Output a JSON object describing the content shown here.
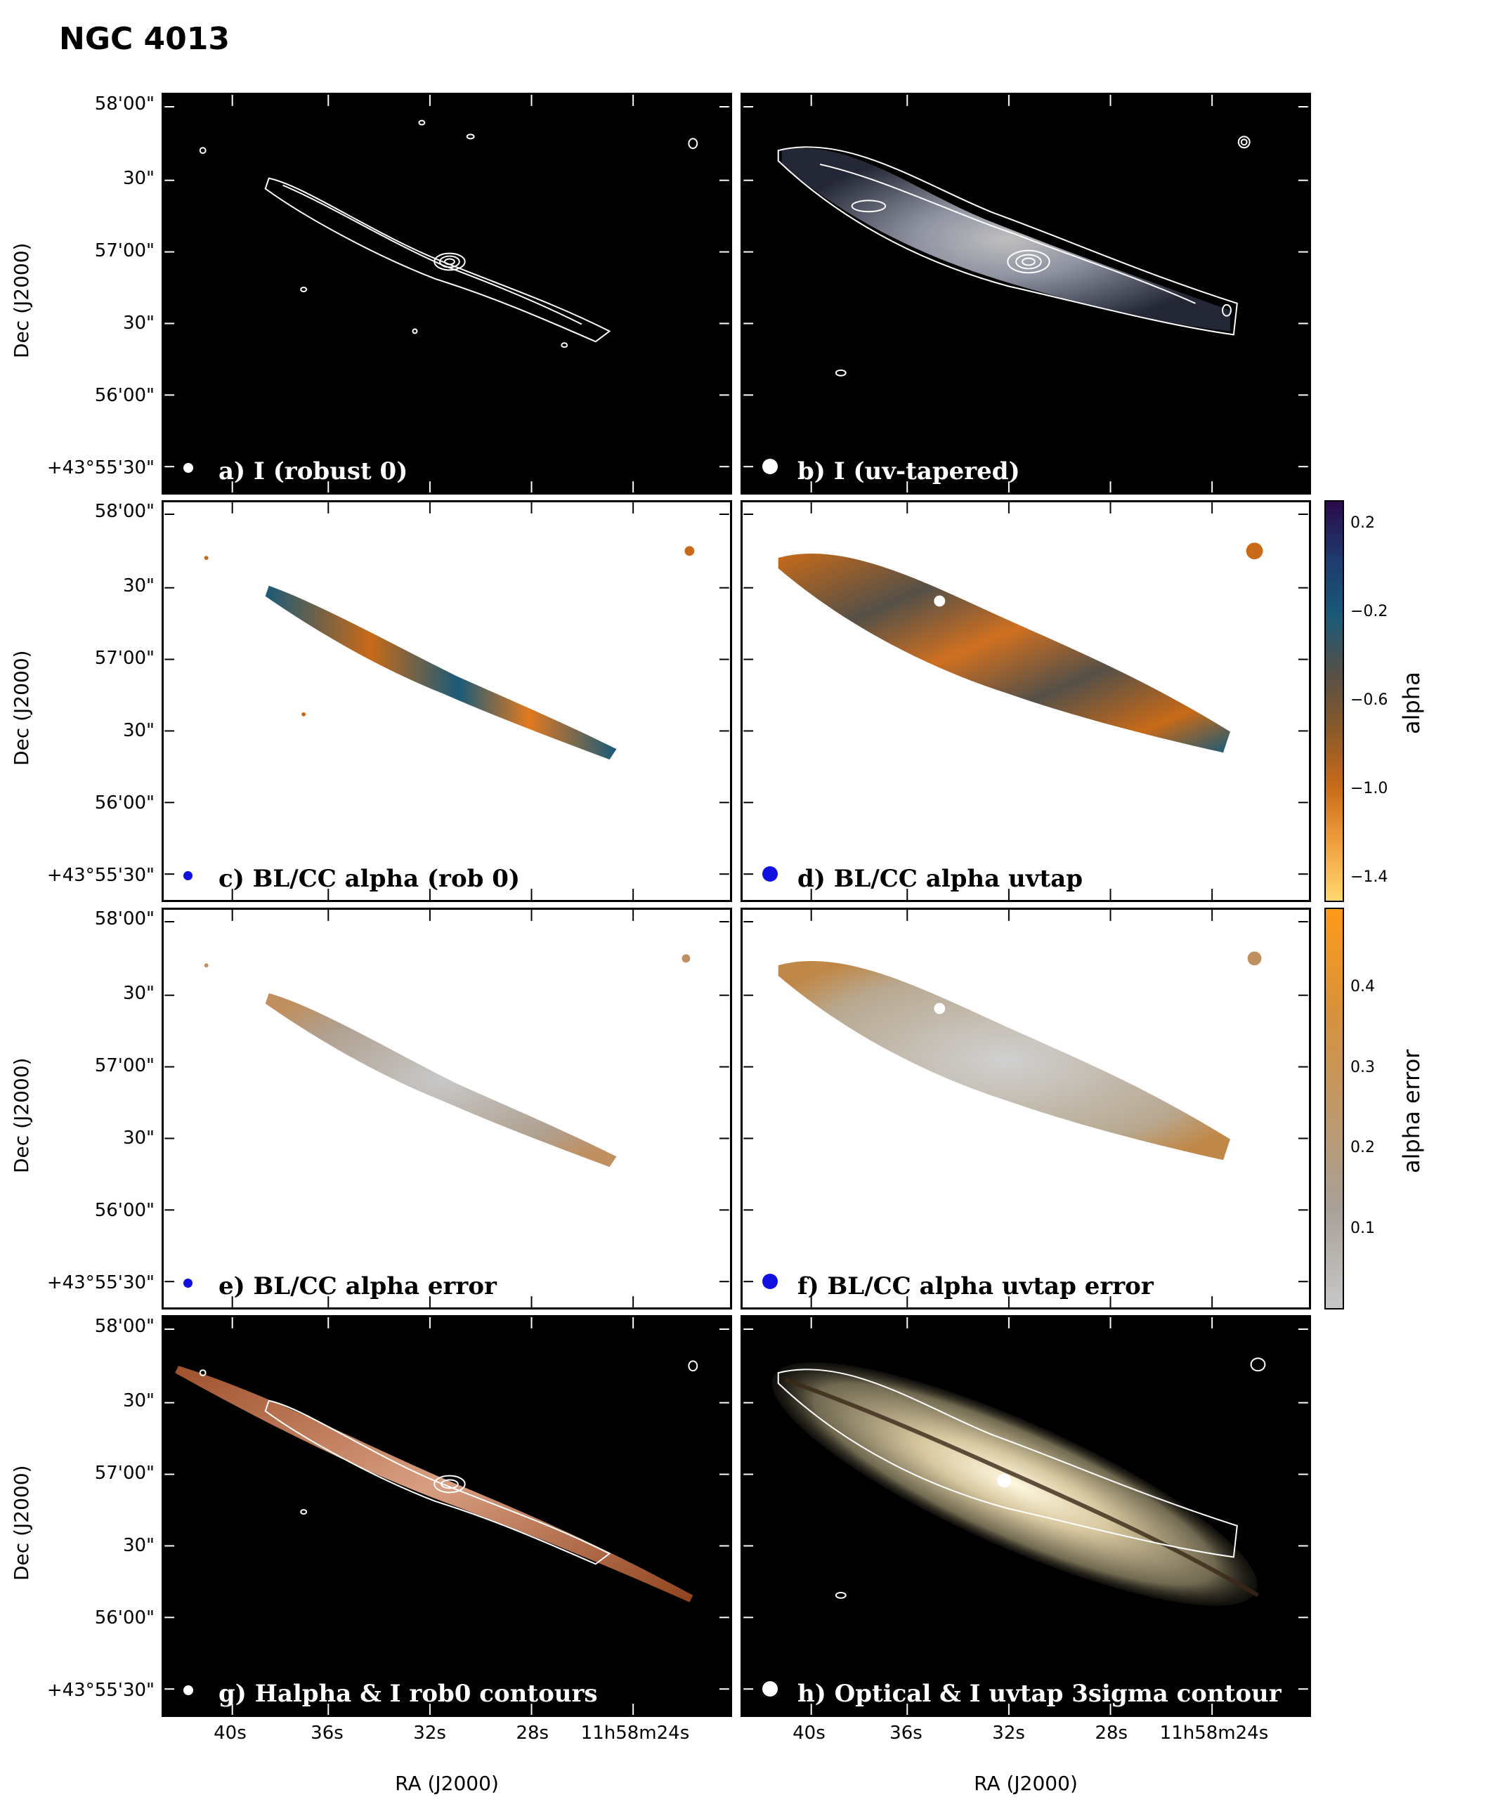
{
  "figure": {
    "title": "NGC 4013",
    "y_ticks": [
      "58'00\"",
      "30\"",
      "57'00\"",
      "30\"",
      "56'00\"",
      "+43°55'30\""
    ],
    "x_ticks": [
      "40s",
      "36s",
      "32s",
      "28s",
      "11h58m24s"
    ],
    "y_axis_title": "Dec (J2000)",
    "x_axis_title": "RA (J2000)"
  },
  "panels": [
    {
      "id": "a",
      "label": "a) I (robust 0)",
      "background": "#000000",
      "label_color": "#ffffff",
      "beam_color": "#ffffff"
    },
    {
      "id": "b",
      "label": "b) I (uv-tapered)",
      "background": "#000000",
      "label_color": "#ffffff",
      "beam_color": "#ffffff"
    },
    {
      "id": "c",
      "label": "c) BL/CC alpha (rob 0)",
      "background": "#ffffff",
      "label_color": "#000000",
      "beam_color": "#1010e0"
    },
    {
      "id": "d",
      "label": "d) BL/CC alpha uvtap",
      "background": "#ffffff",
      "label_color": "#000000",
      "beam_color": "#1010e0"
    },
    {
      "id": "e",
      "label": "e)  BL/CC alpha error",
      "background": "#ffffff",
      "label_color": "#000000",
      "beam_color": "#1010e0"
    },
    {
      "id": "f",
      "label": "f) BL/CC alpha uvtap error",
      "background": "#ffffff",
      "label_color": "#000000",
      "beam_color": "#1010e0"
    },
    {
      "id": "g",
      "label": "g) Halpha & I rob0 contours",
      "background": "#000000",
      "label_color": "#ffffff",
      "beam_color": "#ffffff"
    },
    {
      "id": "h",
      "label": "h) Optical & I uvtap 3sigma contour",
      "background": "#000000",
      "label_color": "#ffffff",
      "beam_color": "#ffffff"
    }
  ],
  "colorbars": [
    {
      "title": "alpha",
      "ticks": [
        "0.2",
        "−0.2",
        "−0.6",
        "−1.0",
        "−1.4"
      ],
      "colors": [
        "#2a0a4a",
        "#1e3a6e",
        "#1a5a78",
        "#555048",
        "#8a5a2a",
        "#c86a18",
        "#f0a040",
        "#ffd870"
      ]
    },
    {
      "title": "alpha error",
      "ticks": [
        "0.4",
        "0.3",
        "0.2",
        "0.1"
      ],
      "colors": [
        "#ff9a1a",
        "#d8923a",
        "#c09868",
        "#a8a098",
        "#c8c8c8"
      ]
    }
  ]
}
